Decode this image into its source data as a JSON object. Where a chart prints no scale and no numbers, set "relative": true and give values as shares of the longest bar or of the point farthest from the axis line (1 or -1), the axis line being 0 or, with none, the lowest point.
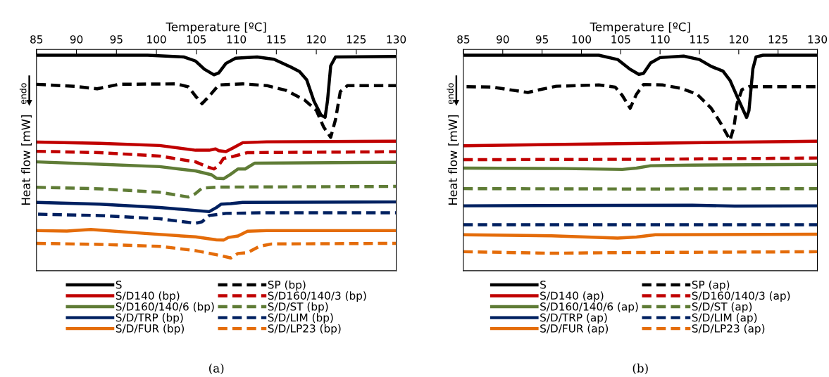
{
  "chart_data": [
    {
      "type": "line",
      "relative": true,
      "xlabel": "Temperature [ºC]",
      "ylabel": "Heat flow [mW]",
      "xlim": [
        85,
        130
      ],
      "xticks": [
        85,
        90,
        95,
        100,
        105,
        110,
        115,
        120,
        125,
        130
      ],
      "tick_labels": "x",
      "legend": "bottom",
      "grid": false,
      "annotations": [
        "endo",
        "(a)"
      ],
      "series": [
        {
          "name": "S",
          "color": "#000000",
          "line_style": "solid",
          "x": [
            85,
            98.9,
            103.4,
            104.9,
            106.0,
            107.2,
            107.8,
            108.7,
            109.9,
            112.6,
            114.7,
            116.8,
            117.9,
            118.8,
            119.7,
            120.6,
            121.1,
            121.4,
            121.8,
            122.4,
            130
          ],
          "values": [
            1.0,
            1.0,
            0.992,
            0.973,
            0.935,
            0.909,
            0.918,
            0.962,
            0.986,
            0.992,
            0.981,
            0.945,
            0.924,
            0.886,
            0.788,
            0.722,
            0.712,
            0.788,
            0.951,
            0.992,
            0.994
          ]
        },
        {
          "name": "SP (bp)",
          "color": "#000000",
          "line_style": "dashed",
          "x": [
            85,
            90,
            92.6,
            95.3,
            102.5,
            104.0,
            104.9,
            105.7,
            106.6,
            107.8,
            110.8,
            113.8,
            116.2,
            118.5,
            120.0,
            120.9,
            121.8,
            122.4,
            123.0,
            123.9,
            130
          ],
          "values": [
            0.865,
            0.855,
            0.844,
            0.865,
            0.867,
            0.853,
            0.81,
            0.775,
            0.81,
            0.862,
            0.867,
            0.859,
            0.837,
            0.793,
            0.744,
            0.668,
            0.619,
            0.701,
            0.831,
            0.859,
            0.859
          ]
        },
        {
          "name": "S/D140 (bp)",
          "color": "#c00000",
          "line_style": "solid",
          "x": [
            85,
            92.9,
            100.4,
            104.9,
            106.6,
            107.4,
            107.8,
            108.7,
            109.6,
            110.8,
            113.8,
            130
          ],
          "values": [
            0.597,
            0.591,
            0.581,
            0.559,
            0.559,
            0.565,
            0.557,
            0.553,
            0.57,
            0.594,
            0.598,
            0.601
          ]
        },
        {
          "name": "S/D160/140/3 (bp)",
          "color": "#c00000",
          "line_style": "dashed",
          "x": [
            85,
            92.9,
            100.4,
            104.9,
            106.3,
            107.2,
            107.8,
            108.4,
            109.6,
            111.4,
            130
          ],
          "values": [
            0.554,
            0.548,
            0.532,
            0.505,
            0.483,
            0.472,
            0.489,
            0.521,
            0.53,
            0.548,
            0.552
          ]
        },
        {
          "name": "S/D160/140/6 (bp)",
          "color": "#5f7c36",
          "line_style": "solid",
          "x": [
            85,
            92.9,
            100.4,
            104.9,
            106.9,
            107.5,
            108.4,
            109.3,
            110.2,
            111.1,
            112.3,
            130
          ],
          "values": [
            0.505,
            0.494,
            0.483,
            0.463,
            0.445,
            0.429,
            0.427,
            0.448,
            0.472,
            0.472,
            0.499,
            0.503
          ]
        },
        {
          "name": "S/D/ST (bp)",
          "color": "#5f7c36",
          "line_style": "dashed",
          "x": [
            85,
            92.9,
            100.4,
            104.0,
            104.9,
            105.7,
            107.8,
            130
          ],
          "values": [
            0.387,
            0.38,
            0.364,
            0.342,
            0.358,
            0.383,
            0.388,
            0.391
          ]
        },
        {
          "name": "S/D/TRP (bp)",
          "color": "#002060",
          "line_style": "solid",
          "x": [
            85,
            92.9,
            100.4,
            106.6,
            107.5,
            108.1,
            109.3,
            110.8,
            130
          ],
          "values": [
            0.317,
            0.309,
            0.293,
            0.274,
            0.293,
            0.309,
            0.311,
            0.317,
            0.319
          ]
        },
        {
          "name": "S/D/LIM (bp)",
          "color": "#002060",
          "line_style": "dashed",
          "x": [
            85.2,
            92.9,
            100.4,
            104.9,
            105.7,
            106.6,
            108.7,
            113.8,
            130
          ],
          "values": [
            0.262,
            0.256,
            0.241,
            0.22,
            0.227,
            0.256,
            0.266,
            0.269,
            0.269
          ]
        },
        {
          "name": "S/D/FUR (bp)",
          "color": "#e46c0a",
          "line_style": "solid",
          "x": [
            85,
            88.8,
            91.8,
            98.9,
            104.9,
            107.5,
            108.4,
            109.0,
            110.2,
            111.4,
            113.8,
            130
          ],
          "values": [
            0.186,
            0.184,
            0.191,
            0.172,
            0.157,
            0.143,
            0.142,
            0.154,
            0.161,
            0.183,
            0.186,
            0.186
          ]
        },
        {
          "name": "S/D/LP23 (bp)",
          "color": "#e46c0a",
          "line_style": "dashed",
          "x": [
            85,
            92.9,
            100.4,
            104.9,
            107.8,
            109.3,
            110.2,
            111.4,
            112.9,
            114.4,
            130
          ],
          "values": [
            0.127,
            0.122,
            0.113,
            0.093,
            0.072,
            0.059,
            0.08,
            0.084,
            0.113,
            0.124,
            0.127
          ]
        }
      ]
    },
    {
      "type": "line",
      "relative": true,
      "xlabel": "Temperature [ºC]",
      "ylabel": "Heat flow [mW]",
      "xlim": [
        85,
        130
      ],
      "xticks": [
        85,
        90,
        95,
        100,
        105,
        110,
        115,
        120,
        125,
        130
      ],
      "tick_labels": "x",
      "legend": "bottom",
      "grid": false,
      "annotations": [
        "endo",
        "(b)"
      ],
      "series": [
        {
          "name": "S",
          "color": "#000000",
          "line_style": "solid",
          "x": [
            85,
            102.2,
            104.6,
            106.1,
            107.3,
            107.9,
            108.8,
            110.0,
            113.0,
            115.0,
            116.5,
            118.0,
            118.9,
            119.8,
            120.6,
            121.0,
            121.3,
            121.8,
            122.2,
            123.1,
            130
          ],
          "values": [
            1.0,
            1.0,
            0.98,
            0.937,
            0.911,
            0.916,
            0.964,
            0.989,
            0.996,
            0.98,
            0.948,
            0.926,
            0.883,
            0.808,
            0.743,
            0.711,
            0.743,
            0.937,
            0.992,
            1.0,
            1.0
          ]
        },
        {
          "name": "SP (ap)",
          "color": "#000000",
          "line_style": "dashed",
          "x": [
            85.4,
            88.7,
            90.8,
            93.2,
            94.7,
            96.8,
            102.2,
            104.3,
            105.2,
            106.2,
            107.0,
            107.9,
            110.3,
            112.7,
            114.7,
            116.5,
            117.7,
            118.9,
            119.4,
            119.8,
            120.4,
            121.3,
            130
          ],
          "values": [
            0.854,
            0.852,
            0.84,
            0.827,
            0.84,
            0.856,
            0.862,
            0.852,
            0.813,
            0.754,
            0.819,
            0.864,
            0.862,
            0.846,
            0.819,
            0.754,
            0.685,
            0.606,
            0.668,
            0.776,
            0.84,
            0.854,
            0.854
          ]
        },
        {
          "name": "S/D140 (ap)",
          "color": "#c00000",
          "line_style": "solid",
          "x": [
            85,
            108.2,
            130
          ],
          "values": [
            0.58,
            0.591,
            0.601
          ]
        },
        {
          "name": "S/D160/140/3 (ap)",
          "color": "#c00000",
          "line_style": "dashed",
          "x": [
            85,
            108.2,
            130
          ],
          "values": [
            0.515,
            0.517,
            0.523
          ]
        },
        {
          "name": "S/D160/140/6 (ap)",
          "color": "#5f7c36",
          "line_style": "solid",
          "x": [
            85,
            97.7,
            105.2,
            107.0,
            108.8,
            114.1,
            130
          ],
          "values": [
            0.476,
            0.474,
            0.47,
            0.476,
            0.487,
            0.49,
            0.493
          ]
        },
        {
          "name": "S/D/ST (ap)",
          "color": "#5f7c36",
          "line_style": "dashed",
          "x": [
            85,
            108.2,
            130
          ],
          "values": [
            0.381,
            0.379,
            0.381
          ]
        },
        {
          "name": "S/D/TRP (ap)",
          "color": "#002060",
          "line_style": "solid",
          "x": [
            85,
            114.1,
            119.5,
            130
          ],
          "values": [
            0.301,
            0.304,
            0.3,
            0.301
          ]
        },
        {
          "name": "S/D/LIM (ap)",
          "color": "#002060",
          "line_style": "dashed",
          "x": [
            85,
            130
          ],
          "values": [
            0.213,
            0.213
          ]
        },
        {
          "name": "S/D/FUR (ap)",
          "color": "#e46c0a",
          "line_style": "solid",
          "x": [
            85,
            96.2,
            104.6,
            107.0,
            109.4,
            130
          ],
          "values": [
            0.167,
            0.162,
            0.151,
            0.156,
            0.167,
            0.169
          ]
        },
        {
          "name": "S/D/LP23 (ap)",
          "color": "#e46c0a",
          "line_style": "dashed",
          "x": [
            85,
            96.2,
            105.2,
            130
          ],
          "values": [
            0.088,
            0.081,
            0.084,
            0.088
          ]
        }
      ]
    }
  ]
}
